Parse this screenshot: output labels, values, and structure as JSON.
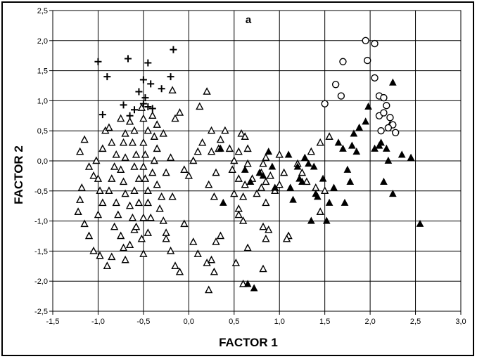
{
  "chart_data": {
    "type": "scatter",
    "title": "a",
    "xlabel": "FACTOR 1",
    "ylabel": "FACTOR 2",
    "xlim": [
      -1.5,
      3.0
    ],
    "ylim": [
      -2.5,
      2.5
    ],
    "x_ticks": [
      "-1,5",
      "-1,0",
      "-0,5",
      "0,0",
      "0,5",
      "1,0",
      "1,5",
      "2,0",
      "2,5",
      "3,0"
    ],
    "y_ticks": [
      "2,5",
      "2,0",
      "1,5",
      "1,0",
      "0,5",
      "0,0",
      "-0,5",
      "-1,0",
      "-1,5",
      "-2,0",
      "-2,5"
    ],
    "grid": true,
    "series": [
      {
        "marker": "plus",
        "points": [
          [
            -1.0,
            1.65
          ],
          [
            -0.9,
            1.4
          ],
          [
            -0.67,
            1.7
          ],
          [
            -0.45,
            1.63
          ],
          [
            -0.17,
            1.85
          ],
          [
            -0.2,
            1.4
          ],
          [
            -0.3,
            1.2
          ],
          [
            -0.5,
            1.35
          ],
          [
            -0.55,
            1.15
          ],
          [
            -0.42,
            1.28
          ],
          [
            -0.48,
            1.05
          ],
          [
            -0.5,
            0.95
          ],
          [
            -0.45,
            0.9
          ],
          [
            -0.4,
            0.87
          ],
          [
            -0.6,
            0.85
          ],
          [
            -0.72,
            0.93
          ],
          [
            -0.95,
            0.77
          ],
          [
            -0.65,
            0.75
          ]
        ]
      },
      {
        "marker": "triangle-open",
        "points": [
          [
            -1.15,
            0.35
          ],
          [
            -1.2,
            0.15
          ],
          [
            -1.1,
            -0.1
          ],
          [
            -1.05,
            -0.25
          ],
          [
            -1.18,
            -0.45
          ],
          [
            -1.2,
            -0.65
          ],
          [
            -1.22,
            -0.85
          ],
          [
            -1.15,
            -1.05
          ],
          [
            -1.1,
            -1.25
          ],
          [
            -1.05,
            -1.5
          ],
          [
            -0.98,
            -1.58
          ],
          [
            -0.9,
            -1.75
          ],
          [
            -0.85,
            -1.6
          ],
          [
            -1.0,
            -0.9
          ],
          [
            -0.95,
            -0.7
          ],
          [
            -0.98,
            -0.5
          ],
          [
            -1.0,
            -0.3
          ],
          [
            -1.02,
            0.0
          ],
          [
            -0.95,
            0.2
          ],
          [
            -0.92,
            0.5
          ],
          [
            -0.88,
            0.55
          ],
          [
            -0.85,
            0.3
          ],
          [
            -0.8,
            0.1
          ],
          [
            -0.82,
            -0.1
          ],
          [
            -0.85,
            -0.3
          ],
          [
            -0.88,
            -0.5
          ],
          [
            -0.8,
            -0.7
          ],
          [
            -0.78,
            -0.9
          ],
          [
            -0.82,
            -1.1
          ],
          [
            -0.75,
            -1.25
          ],
          [
            -0.72,
            -1.45
          ],
          [
            -0.7,
            -1.65
          ],
          [
            -0.65,
            -1.4
          ],
          [
            -0.6,
            -1.15
          ],
          [
            -0.62,
            -0.95
          ],
          [
            -0.65,
            -0.75
          ],
          [
            -0.7,
            -0.55
          ],
          [
            -0.72,
            -0.35
          ],
          [
            -0.75,
            -0.15
          ],
          [
            -0.7,
            0.05
          ],
          [
            -0.72,
            0.3
          ],
          [
            -0.7,
            0.45
          ],
          [
            -0.75,
            0.7
          ],
          [
            -0.65,
            0.65
          ],
          [
            -0.6,
            0.5
          ],
          [
            -0.62,
            0.3
          ],
          [
            -0.58,
            0.1
          ],
          [
            -0.6,
            -0.1
          ],
          [
            -0.55,
            -0.3
          ],
          [
            -0.6,
            -0.5
          ],
          [
            -0.55,
            -0.7
          ],
          [
            -0.5,
            -0.95
          ],
          [
            -0.58,
            -1.1
          ],
          [
            -0.52,
            -1.3
          ],
          [
            -0.5,
            -1.55
          ],
          [
            -0.45,
            -1.2
          ],
          [
            -0.42,
            -0.95
          ],
          [
            -0.45,
            -0.7
          ],
          [
            -0.45,
            -0.5
          ],
          [
            -0.48,
            -0.3
          ],
          [
            -0.5,
            -0.1
          ],
          [
            -0.48,
            0.1
          ],
          [
            -0.5,
            0.3
          ],
          [
            -0.45,
            0.5
          ],
          [
            -0.5,
            0.7
          ],
          [
            -0.52,
            0.88
          ],
          [
            -0.4,
            0.75
          ],
          [
            -0.35,
            0.6
          ],
          [
            -0.38,
            0.4
          ],
          [
            -0.35,
            0.2
          ],
          [
            -0.38,
            0.0
          ],
          [
            -0.4,
            -0.2
          ],
          [
            -0.35,
            -0.4
          ],
          [
            -0.3,
            -0.6
          ],
          [
            -0.32,
            -0.8
          ],
          [
            -0.28,
            -1.0
          ],
          [
            -0.25,
            -1.3
          ],
          [
            -0.2,
            -1.5
          ],
          [
            -0.15,
            -1.75
          ],
          [
            -0.1,
            -1.85
          ],
          [
            -0.25,
            -1.2
          ],
          [
            -0.18,
            -0.6
          ],
          [
            -0.25,
            -0.2
          ],
          [
            -0.2,
            0.05
          ],
          [
            -0.28,
            0.45
          ],
          [
            -0.15,
            0.7
          ],
          [
            -0.1,
            0.8
          ],
          [
            -0.18,
            1.17
          ],
          [
            0.2,
            1.15
          ],
          [
            0.12,
            0.9
          ],
          [
            0.25,
            0.5
          ],
          [
            0.15,
            0.3
          ],
          [
            0.1,
            0.15
          ],
          [
            0.05,
            0.0
          ],
          [
            -0.05,
            -0.15
          ],
          [
            0.0,
            -0.25
          ],
          [
            -0.05,
            -1.05
          ],
          [
            0.05,
            -1.35
          ],
          [
            0.1,
            -1.55
          ],
          [
            0.2,
            -1.7
          ],
          [
            0.25,
            -1.65
          ],
          [
            0.28,
            -1.85
          ],
          [
            0.22,
            -2.15
          ],
          [
            0.3,
            -1.35
          ],
          [
            0.35,
            -1.25
          ],
          [
            0.28,
            -0.6
          ],
          [
            0.22,
            -0.4
          ],
          [
            0.3,
            -0.2
          ],
          [
            0.25,
            0.15
          ],
          [
            0.33,
            0.2
          ],
          [
            0.4,
            0.5
          ],
          [
            0.35,
            0.35
          ],
          [
            0.45,
            0.2
          ],
          [
            0.5,
            0.0
          ],
          [
            0.48,
            -0.15
          ],
          [
            0.55,
            -0.3
          ],
          [
            0.5,
            -0.55
          ],
          [
            0.55,
            -0.8
          ],
          [
            0.6,
            -1.0
          ],
          [
            0.52,
            -1.7
          ],
          [
            0.6,
            -2.05
          ],
          [
            0.65,
            -1.45
          ],
          [
            0.55,
            -0.9
          ],
          [
            0.6,
            -0.6
          ],
          [
            0.62,
            -0.4
          ],
          [
            0.65,
            0.2
          ],
          [
            0.58,
            0.45
          ],
          [
            0.55,
            0.15
          ],
          [
            0.62,
            0.4
          ],
          [
            0.65,
            -0.05
          ],
          [
            0.7,
            -0.3
          ],
          [
            0.75,
            -0.55
          ],
          [
            0.8,
            -0.2
          ],
          [
            0.82,
            -0.05
          ],
          [
            0.85,
            0.05
          ],
          [
            0.8,
            -0.45
          ],
          [
            0.85,
            -0.7
          ],
          [
            0.82,
            -1.1
          ],
          [
            0.85,
            -1.3
          ],
          [
            0.82,
            -1.8
          ],
          [
            0.88,
            -1.15
          ],
          [
            0.85,
            -0.35
          ],
          [
            0.9,
            -0.25
          ],
          [
            0.95,
            -0.5
          ],
          [
            1.0,
            -0.4
          ],
          [
            1.0,
            0.1
          ],
          [
            1.05,
            -0.2
          ],
          [
            1.1,
            -1.25
          ],
          [
            1.08,
            -1.3
          ],
          [
            1.2,
            -0.05
          ],
          [
            1.25,
            -0.2
          ],
          [
            1.3,
            -0.35
          ],
          [
            1.35,
            0.15
          ],
          [
            1.45,
            0.3
          ],
          [
            1.55,
            0.4
          ],
          [
            1.4,
            -0.45
          ],
          [
            1.5,
            -0.5
          ],
          [
            1.45,
            -0.85
          ]
        ]
      },
      {
        "marker": "triangle-filled",
        "points": [
          [
            0.35,
            0.2
          ],
          [
            0.38,
            -0.7
          ],
          [
            0.62,
            -0.15
          ],
          [
            0.68,
            -0.35
          ],
          [
            0.65,
            -2.05
          ],
          [
            0.72,
            -2.12
          ],
          [
            0.78,
            -0.2
          ],
          [
            0.82,
            -0.25
          ],
          [
            0.88,
            0.15
          ],
          [
            0.92,
            -0.1
          ],
          [
            0.95,
            -0.45
          ],
          [
            1.1,
            0.1
          ],
          [
            1.12,
            -0.45
          ],
          [
            1.15,
            -0.65
          ],
          [
            1.2,
            -0.1
          ],
          [
            1.22,
            -0.3
          ],
          [
            1.25,
            -0.35
          ],
          [
            1.28,
            0.05
          ],
          [
            1.32,
            -0.05
          ],
          [
            1.38,
            -0.1
          ],
          [
            1.4,
            -0.55
          ],
          [
            1.42,
            -0.6
          ],
          [
            1.48,
            -0.3
          ],
          [
            1.35,
            -1.0
          ],
          [
            1.52,
            -1.0
          ],
          [
            1.55,
            -0.7
          ],
          [
            1.6,
            -0.45
          ],
          [
            1.65,
            0.3
          ],
          [
            1.7,
            0.2
          ],
          [
            1.75,
            -0.15
          ],
          [
            1.78,
            -0.35
          ],
          [
            1.72,
            -0.7
          ],
          [
            1.8,
            0.25
          ],
          [
            1.85,
            0.15
          ],
          [
            1.82,
            0.45
          ],
          [
            1.88,
            0.55
          ],
          [
            1.95,
            0.65
          ],
          [
            1.98,
            0.9
          ],
          [
            2.05,
            0.2
          ],
          [
            2.1,
            0.25
          ],
          [
            2.12,
            0.3
          ],
          [
            2.15,
            -0.35
          ],
          [
            2.18,
            0.2
          ],
          [
            2.2,
            0.0
          ],
          [
            2.22,
            0.6
          ],
          [
            2.25,
            1.3
          ],
          [
            2.25,
            -0.55
          ],
          [
            2.35,
            0.1
          ],
          [
            2.45,
            0.05
          ],
          [
            2.55,
            -1.05
          ]
        ]
      },
      {
        "marker": "circle-open",
        "points": [
          [
            1.95,
            2.0
          ],
          [
            2.05,
            1.95
          ],
          [
            1.7,
            1.65
          ],
          [
            1.97,
            1.67
          ],
          [
            1.62,
            1.27
          ],
          [
            1.68,
            1.08
          ],
          [
            1.5,
            0.95
          ],
          [
            2.05,
            1.38
          ],
          [
            2.1,
            1.08
          ],
          [
            2.15,
            1.05
          ],
          [
            2.18,
            0.92
          ],
          [
            2.1,
            0.75
          ],
          [
            2.15,
            0.8
          ],
          [
            2.22,
            0.72
          ],
          [
            2.12,
            0.5
          ],
          [
            2.25,
            0.6
          ],
          [
            2.28,
            0.47
          ],
          [
            2.2,
            0.55
          ]
        ]
      }
    ]
  }
}
